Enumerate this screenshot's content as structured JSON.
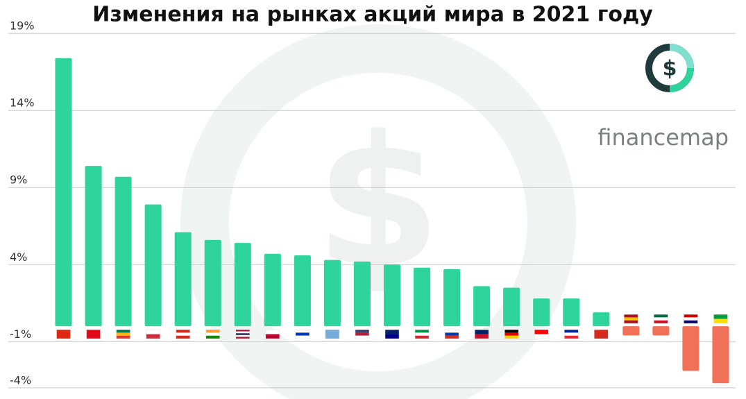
{
  "chart_data": {
    "type": "bar",
    "title": "Изменения на рынках акций мира в 2021 году",
    "brand": "financemap",
    "logo_symbol": "$",
    "categories": [
      null,
      null,
      null,
      null,
      null,
      null,
      null,
      null,
      null,
      null,
      null,
      null,
      null,
      null,
      null,
      null,
      null,
      null,
      null,
      null,
      null,
      null,
      null
    ],
    "values": [
      17.4,
      10.4,
      9.7,
      7.9,
      6.1,
      5.6,
      5.4,
      4.7,
      4.6,
      4.3,
      4.2,
      4.0,
      3.8,
      3.7,
      2.6,
      2.5,
      1.8,
      1.8,
      0.9,
      -0.6,
      -0.6,
      -2.9,
      -3.7
    ],
    "color": "#2fd49c",
    "negative_color": "#f07058",
    "ylim": [
      -4.5,
      20
    ],
    "yticks": [
      {
        "value": 19,
        "label": "19%"
      },
      {
        "value": 14,
        "label": "14%"
      },
      {
        "value": 9,
        "label": "9%"
      },
      {
        "value": 4,
        "label": "4%"
      },
      {
        "value": -1,
        "label": "-1%"
      },
      {
        "value": -4,
        "label": "-4%"
      }
    ],
    "grid": true
  }
}
